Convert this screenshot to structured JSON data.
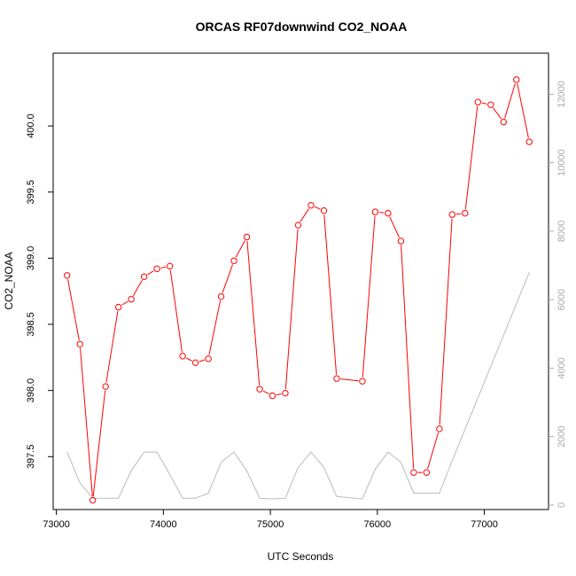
{
  "chart_data": {
    "type": "line",
    "title": "ORCAS RF07downwind CO2_NOAA",
    "xlabel": "UTC Seconds",
    "ylabel": "CO2_NOAA",
    "xlim": [
      72970,
      77600
    ],
    "ylim": [
      397.1,
      400.55
    ],
    "y2lim": [
      -130,
      13200
    ],
    "x_ticks": [
      73000,
      74000,
      75000,
      76000,
      77000
    ],
    "y_ticks": [
      397.5,
      398.0,
      398.5,
      399.0,
      399.5,
      400.0
    ],
    "y2_ticks": [
      0,
      2000,
      4000,
      6000,
      8000,
      10000,
      12000
    ],
    "grid": false,
    "colors": {
      "primary": "#ff0000",
      "secondary": "#bbbbbb"
    },
    "series": [
      {
        "axis": "left",
        "style": "line+points",
        "x": [
          73100,
          73220,
          73340,
          73460,
          73580,
          73700,
          73820,
          73940,
          74060,
          74180,
          74300,
          74420,
          74540,
          74660,
          74780,
          74900,
          75020,
          75140,
          75260,
          75380,
          75500,
          75620,
          75860,
          75980,
          76100,
          76220,
          76340,
          76460,
          76580,
          76700,
          76820,
          76940,
          77060,
          77180,
          77300,
          77420
        ],
        "y": [
          398.87,
          398.35,
          397.17,
          398.03,
          398.63,
          398.69,
          398.86,
          398.92,
          398.94,
          398.26,
          398.21,
          398.24,
          398.71,
          398.98,
          399.16,
          398.01,
          397.96,
          397.98,
          399.25,
          399.4,
          399.36,
          398.09,
          398.07,
          399.35,
          399.34,
          399.13,
          397.38,
          397.38,
          397.71,
          399.33,
          399.34,
          400.18,
          400.16,
          400.03,
          400.35,
          399.88
        ]
      },
      {
        "axis": "right",
        "style": "line",
        "x": [
          73100,
          73220,
          73340,
          73460,
          73580,
          73700,
          73820,
          73940,
          74060,
          74180,
          74300,
          74420,
          74540,
          74660,
          74780,
          74900,
          75020,
          75140,
          75260,
          75380,
          75500,
          75620,
          75860,
          75980,
          76100,
          76220,
          76340,
          76460,
          76580,
          76700,
          77420
        ],
        "y": [
          1550,
          650,
          200,
          200,
          200,
          1000,
          1550,
          1550,
          900,
          200,
          200,
          350,
          1250,
          1550,
          1000,
          200,
          180,
          200,
          1100,
          1550,
          1100,
          250,
          180,
          1050,
          1550,
          1250,
          350,
          350,
          350,
          1300,
          6800
        ]
      }
    ]
  }
}
